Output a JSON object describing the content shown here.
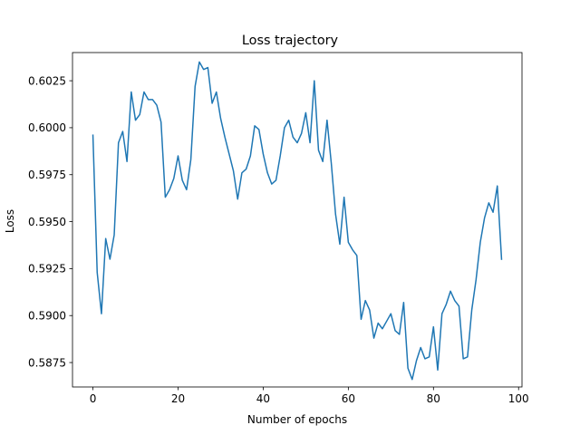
{
  "chart_data": {
    "type": "line",
    "title": "Loss trajectory",
    "xlabel": "Number of epochs",
    "ylabel": "Loss",
    "xlim": [
      -4.8,
      100.8
    ],
    "ylim": [
      0.5862,
      0.604
    ],
    "grid": false,
    "legend": "none",
    "xticks": [
      0,
      20,
      40,
      60,
      80,
      100
    ],
    "yticks": [
      0.5875,
      0.59,
      0.5925,
      0.595,
      0.5975,
      0.6,
      0.6025
    ],
    "xtick_labels": [
      "0",
      "20",
      "40",
      "60",
      "80",
      "100"
    ],
    "ytick_labels": [
      "0.5875",
      "0.5900",
      "0.5925",
      "0.5950",
      "0.5975",
      "0.6000",
      "0.6025"
    ],
    "series": [
      {
        "color": "#1f77b4",
        "x": [
          0,
          1,
          2,
          3,
          4,
          5,
          6,
          7,
          8,
          9,
          10,
          11,
          12,
          13,
          14,
          15,
          16,
          17,
          18,
          19,
          20,
          21,
          22,
          23,
          24,
          25,
          26,
          27,
          28,
          29,
          30,
          31,
          32,
          33,
          34,
          35,
          36,
          37,
          38,
          39,
          40,
          41,
          42,
          43,
          44,
          45,
          46,
          47,
          48,
          49,
          50,
          51,
          52,
          53,
          54,
          55,
          56,
          57,
          58,
          59,
          60,
          61,
          62,
          63,
          64,
          65,
          66,
          67,
          68,
          69,
          70,
          71,
          72,
          73,
          74,
          75,
          76,
          77,
          78,
          79,
          80,
          81,
          82,
          83,
          84,
          85,
          86,
          87,
          88,
          89,
          90,
          91,
          92,
          93,
          94,
          95,
          96
        ],
        "values": [
          0.5996,
          0.5923,
          0.5901,
          0.5941,
          0.593,
          0.5943,
          0.5992,
          0.5998,
          0.5982,
          0.6019,
          0.6004,
          0.6007,
          0.6019,
          0.6015,
          0.6015,
          0.6012,
          0.6003,
          0.5963,
          0.5967,
          0.5973,
          0.5985,
          0.5972,
          0.5967,
          0.5983,
          0.6022,
          0.6035,
          0.6031,
          0.6032,
          0.6013,
          0.6019,
          0.6005,
          0.5995,
          0.5986,
          0.5977,
          0.5962,
          0.5976,
          0.5978,
          0.5985,
          0.6001,
          0.5999,
          0.5986,
          0.5976,
          0.597,
          0.5972,
          0.5985,
          0.6,
          0.6004,
          0.5995,
          0.5992,
          0.5997,
          0.6008,
          0.5992,
          0.6025,
          0.5988,
          0.5982,
          0.6004,
          0.5981,
          0.5954,
          0.5938,
          0.5963,
          0.5939,
          0.5935,
          0.5932,
          0.5898,
          0.5908,
          0.5903,
          0.5888,
          0.5896,
          0.5893,
          0.5897,
          0.5901,
          0.5892,
          0.589,
          0.5907,
          0.5872,
          0.5866,
          0.5876,
          0.5883,
          0.5877,
          0.5878,
          0.5894,
          0.5871,
          0.5901,
          0.5906,
          0.5913,
          0.5908,
          0.5905,
          0.5877,
          0.5878,
          0.5903,
          0.5919,
          0.5939,
          0.5952,
          0.596,
          0.5955,
          0.5969,
          0.593
        ]
      }
    ]
  }
}
